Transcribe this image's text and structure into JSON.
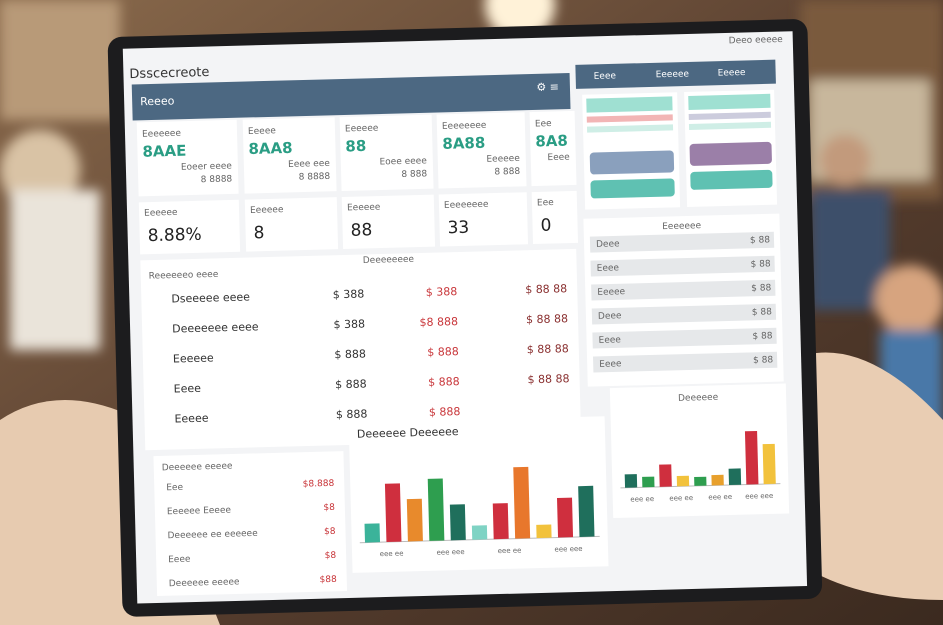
{
  "header": {
    "title": "Dsscecreote",
    "user": "Deeo eeeee"
  },
  "nav": {
    "title": "Reeeo",
    "tabs": [
      "Eeee",
      "Eeeeee",
      "Eeeee"
    ]
  },
  "kpi_top": [
    {
      "label": "Eeeeeee",
      "value": "8AAE",
      "sub": [
        "Eoeer eeee",
        "8 8888"
      ]
    },
    {
      "label": "Eeeee",
      "value": "8AA8",
      "sub": [
        "Eeee eee",
        "8 8888"
      ]
    },
    {
      "label": "Eeeeee",
      "value": "88",
      "sub": [
        "Eoee eeee",
        "8 888"
      ]
    },
    {
      "label": "Eeeeeeee",
      "value": "8A88",
      "sub": [
        "Eeeeee",
        "8 888"
      ]
    },
    {
      "label": "Eee",
      "value": "8A8",
      "sub": [
        "Eeee"
      ]
    }
  ],
  "kpi_bottom": [
    {
      "label": "Eeeeee",
      "value": "8.88%"
    },
    {
      "label": "Eeeeee",
      "value": "8"
    },
    {
      "label": "Eeeeee",
      "value": "88"
    },
    {
      "label": "Eeeeeeee",
      "value": "33"
    },
    {
      "label": "Eee",
      "value": "0"
    }
  ],
  "table": {
    "title": "Reeeeeeo eeee",
    "header": "Deeeeeeee",
    "rows": [
      [
        "Dseeeee eeee",
        "$ 388",
        "$ 388",
        "$ 88 88"
      ],
      [
        "Deeeeeee eeee",
        "$ 388",
        "$8 888",
        "$ 88 88"
      ],
      [
        "Eeeeee",
        "$ 888",
        "$ 888",
        "$ 88 88"
      ],
      [
        "Eeee",
        "$ 888",
        "$ 888",
        "$ 88 88"
      ],
      [
        "Eeeee",
        "$ 888",
        "$ 888",
        ""
      ]
    ]
  },
  "list_right": {
    "title": "Eeeeeee",
    "rows": [
      [
        "Deee",
        "$ 88"
      ],
      [
        "Eeee",
        "$ 88"
      ],
      [
        "Eeeee",
        "$ 88"
      ],
      [
        "Deee",
        "$ 88"
      ],
      [
        "Eeee",
        "$ 88"
      ],
      [
        "Eeee",
        "$ 88"
      ]
    ]
  },
  "list_left": {
    "title": "Deeeeee eeeee",
    "rows": [
      [
        "Eee",
        "$8.888"
      ],
      [
        "Eeeeee Eeeee",
        "$8"
      ],
      [
        "Deeeeee ee eeeeee",
        "$8"
      ],
      [
        "Eeee",
        "$8"
      ],
      [
        "Deeeeee eeeee",
        "$88"
      ]
    ]
  },
  "charts": [
    {
      "type": "bar",
      "title": "Deeeeee Deeeeee",
      "ylim": [
        0,
        100
      ],
      "values": [
        20,
        62,
        45,
        66,
        38,
        15,
        38,
        76,
        14,
        42,
        54
      ],
      "colors": [
        "#3bb39a",
        "#cf2f3e",
        "#e88a2c",
        "#2e9e4f",
        "#1f6f5c",
        "#7fd3c4",
        "#cf2f3e",
        "#e8772c",
        "#f2c23c",
        "#cf2f3e",
        "#1f6f5c"
      ],
      "x_labels": [
        "eee ee",
        "eee eee",
        "eee ee",
        "eee eee"
      ]
    },
    {
      "type": "bar",
      "title": "Deeeeee",
      "ylim": [
        0,
        100
      ],
      "values": [
        18,
        14,
        30,
        14,
        12,
        14,
        22,
        72,
        54
      ],
      "colors": [
        "#1f6f5c",
        "#2e9e4f",
        "#cf2f3e",
        "#f2c23c",
        "#2e9e4f",
        "#e8a02c",
        "#1f6f5c",
        "#cf2f3e",
        "#f2c23c"
      ],
      "x_labels": [
        "eee ee",
        "eee ee",
        "eee ee",
        "eee eee"
      ]
    }
  ]
}
